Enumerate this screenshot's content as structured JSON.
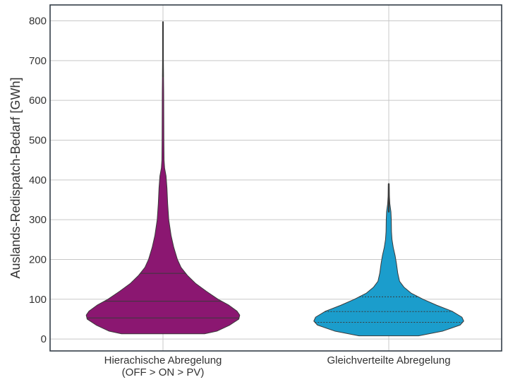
{
  "chart_data": {
    "type": "violin",
    "title": "",
    "xlabel": "",
    "ylabel": "Auslands-Redispatch-Bedarf [GWh]",
    "ylim": [
      -30,
      840
    ],
    "yticks": [
      0,
      100,
      200,
      300,
      400,
      500,
      600,
      700,
      800
    ],
    "grid": true,
    "categories": [
      {
        "lines": [
          "Hierachische Abregelung",
          "(OFF > ON > PV)"
        ]
      },
      {
        "lines": [
          "Gleichverteilte Abregelung"
        ]
      }
    ],
    "series": [
      {
        "color": "#8B1771",
        "quartile_style": "solid",
        "min": 13,
        "max": 797,
        "quartiles": [
          53,
          95,
          165
        ],
        "density": [
          [
            13,
            0.46
          ],
          [
            20,
            0.6
          ],
          [
            35,
            0.74
          ],
          [
            50,
            0.84
          ],
          [
            60,
            0.85
          ],
          [
            70,
            0.82
          ],
          [
            85,
            0.73
          ],
          [
            100,
            0.61
          ],
          [
            120,
            0.48
          ],
          [
            140,
            0.36
          ],
          [
            160,
            0.27
          ],
          [
            180,
            0.2
          ],
          [
            200,
            0.16
          ],
          [
            230,
            0.12
          ],
          [
            260,
            0.09
          ],
          [
            300,
            0.064
          ],
          [
            340,
            0.052
          ],
          [
            380,
            0.044
          ],
          [
            410,
            0.034
          ],
          [
            430,
            0.018
          ],
          [
            450,
            0.012
          ],
          [
            500,
            0.01
          ],
          [
            560,
            0.009
          ],
          [
            620,
            0.008
          ],
          [
            660,
            0.006
          ],
          [
            700,
            0.004
          ],
          [
            740,
            0.002
          ],
          [
            797,
            0.002
          ]
        ]
      },
      {
        "color": "#1B9DCC",
        "quartile_style": "dashed",
        "min": 8,
        "max": 390,
        "quartiles": [
          42,
          69,
          106
        ],
        "density": [
          [
            8,
            0.33
          ],
          [
            20,
            0.6
          ],
          [
            35,
            0.79
          ],
          [
            45,
            0.83
          ],
          [
            55,
            0.81
          ],
          [
            70,
            0.7
          ],
          [
            85,
            0.53
          ],
          [
            100,
            0.38
          ],
          [
            115,
            0.25
          ],
          [
            130,
            0.17
          ],
          [
            145,
            0.12
          ],
          [
            165,
            0.1
          ],
          [
            190,
            0.085
          ],
          [
            210,
            0.07
          ],
          [
            230,
            0.05
          ],
          [
            250,
            0.036
          ],
          [
            270,
            0.03
          ],
          [
            300,
            0.028
          ],
          [
            320,
            0.024
          ],
          [
            340,
            0.012
          ],
          [
            360,
            0.007
          ],
          [
            390,
            0.005
          ]
        ]
      }
    ]
  }
}
